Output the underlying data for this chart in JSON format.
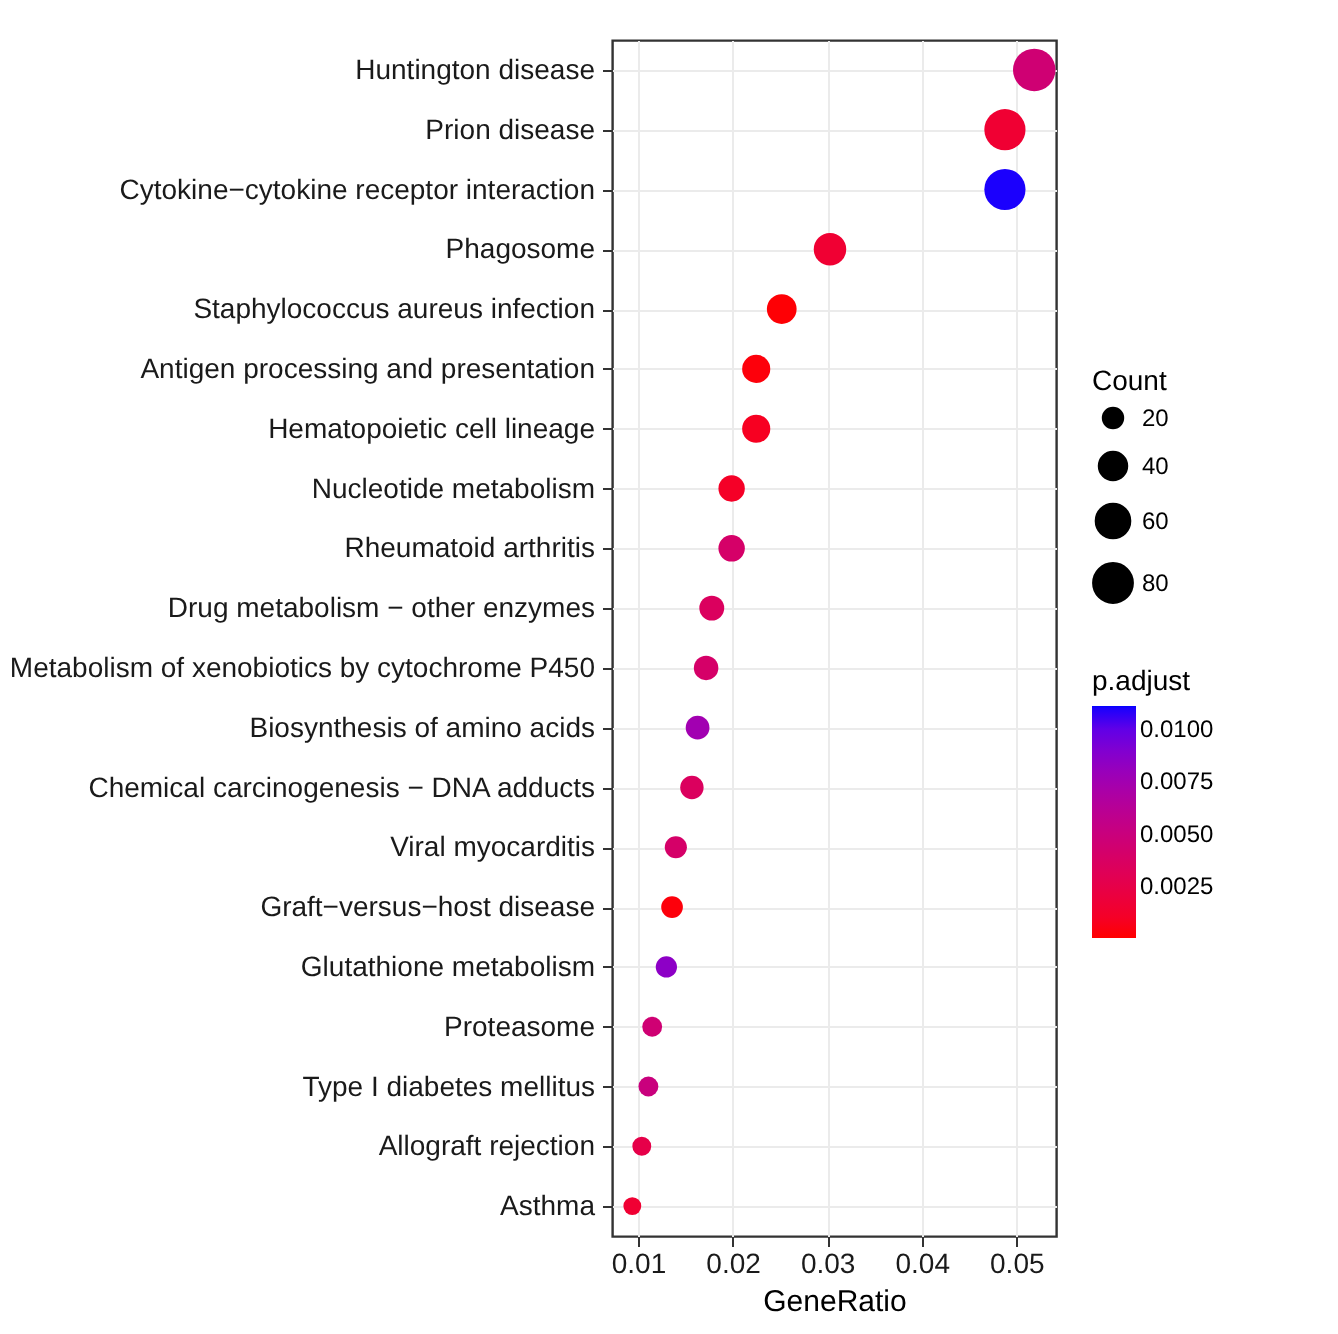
{
  "chart_data": {
    "type": "bubble",
    "orientation": "horizontal",
    "xlabel": "GeneRatio",
    "legend_title": "Count",
    "clabel": "p.adjust",
    "categories": [
      "Huntington disease",
      "Prion disease",
      "Cytokine−cytokine receptor interaction",
      "Phagosome",
      "Staphylococcus aureus infection",
      "Antigen processing and presentation",
      "Hematopoietic cell lineage",
      "Nucleotide metabolism",
      "Rheumatoid arthritis",
      "Drug metabolism − other enzymes",
      "Metabolism of xenobiotics by cytochrome P450",
      "Biosynthesis of amino acids",
      "Chemical carcinogenesis − DNA adducts",
      "Viral myocarditis",
      "Graft−versus−host disease",
      "Glutathione metabolism",
      "Proteasome",
      "Type I diabetes mellitus",
      "Allograft rejection",
      "Asthma"
    ],
    "values": [
      0.0519,
      0.0488,
      0.0488,
      0.0303,
      0.0252,
      0.0225,
      0.0225,
      0.0199,
      0.0199,
      0.0178,
      0.0172,
      0.0163,
      0.0157,
      0.014,
      0.0136,
      0.013,
      0.0115,
      0.0111,
      0.0104,
      0.0094
    ],
    "sizes": [
      96,
      90,
      90,
      56,
      47,
      42,
      42,
      37,
      37,
      33,
      32,
      30,
      29,
      26,
      25,
      24,
      21,
      21,
      19,
      17
    ],
    "size_legend": [
      20,
      40,
      60,
      80
    ],
    "cvalues": [
      0.0045,
      0.0015,
      0.011,
      0.0015,
      0.0001,
      0.0002,
      0.0008,
      0.001,
      0.004,
      0.0035,
      0.004,
      0.0075,
      0.0035,
      0.004,
      0.0002,
      0.0085,
      0.0045,
      0.005,
      0.0025,
      0.0015
    ],
    "clim": [
      1e-05,
      0.0111
    ],
    "cticks": [
      0.0025,
      {
        "value": 0.005,
        "label": "0.0050"
      },
      0.0075,
      {
        "value": 0.01,
        "label": "0.0100"
      }
    ],
    "xlim": [
      0.00725,
      0.0542
    ],
    "xticks": [
      0.01,
      0.02,
      0.03,
      0.04,
      0.05
    ],
    "grid": true
  }
}
